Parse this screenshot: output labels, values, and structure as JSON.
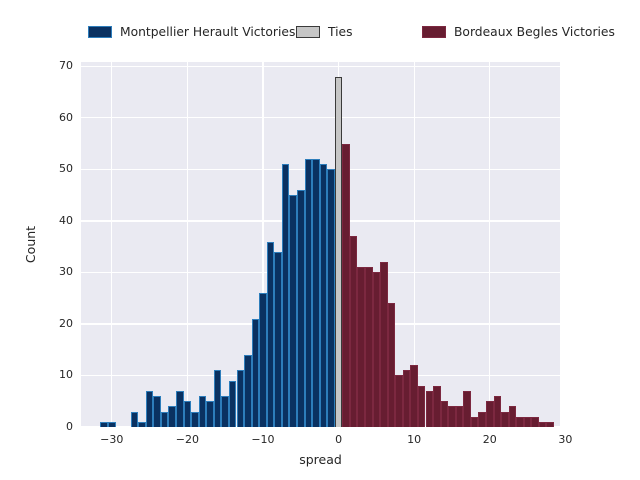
{
  "title": "",
  "legend": {
    "items": [
      {
        "label": "Montpellier Herault Victories",
        "color": "#0a3161",
        "edge": "#2d7dbb"
      },
      {
        "label": "Ties",
        "color": "#c6c6c6",
        "edge": "#3a3a3a"
      },
      {
        "label": "Bordeaux Begles Victories",
        "color": "#671d31",
        "edge": "#7c2840"
      }
    ]
  },
  "chart_data": {
    "type": "bar",
    "subtype": "histogram",
    "xlabel": "spread",
    "ylabel": "Count",
    "grid": true,
    "plot_background": "#eaeaf2",
    "grid_color": "#ffffff",
    "legend_position": "top",
    "xlim": [
      -34.07,
      29.29
    ],
    "ylim": [
      0,
      70.85
    ],
    "bin_width": 1,
    "x_ticks": {
      "values": [
        -30,
        -20,
        -10,
        0,
        10,
        20,
        30
      ],
      "labels": [
        "−30",
        "−20",
        "−10",
        "0",
        "10",
        "20",
        "30"
      ]
    },
    "y_ticks": {
      "values": [
        0,
        10,
        20,
        30,
        40,
        50,
        60,
        70
      ],
      "labels": [
        "0",
        "10",
        "20",
        "30",
        "40",
        "50",
        "60",
        "70"
      ]
    },
    "series": [
      {
        "name": "Montpellier Herault Victories",
        "fill": "#0a3161",
        "edge": "#2d7dbb",
        "edge_width": 1.2,
        "x": [
          -31,
          -30,
          -29,
          -28,
          -27,
          -26,
          -25,
          -24,
          -23,
          -22,
          -21,
          -20,
          -19,
          -18,
          -17,
          -16,
          -15,
          -14,
          -13,
          -12,
          -11,
          -10,
          -9,
          -8,
          -7,
          -6,
          -5,
          -4,
          -3,
          -2,
          -1
        ],
        "counts": [
          1,
          1,
          0,
          0,
          3,
          1,
          7,
          6,
          3,
          4,
          7,
          5,
          3,
          6,
          5,
          11,
          6,
          9,
          11,
          14,
          21,
          26,
          36,
          34,
          51,
          45,
          46,
          52,
          52,
          51,
          50
        ]
      },
      {
        "name": "Ties",
        "fill": "#c6c6c6",
        "edge": "#3a3a3a",
        "edge_width": 1.4,
        "x": [
          0
        ],
        "counts": [
          68
        ]
      },
      {
        "name": "Bordeaux Begles Victories",
        "fill": "#671d31",
        "edge": "#7c2840",
        "edge_width": 1.2,
        "x": [
          1,
          2,
          3,
          4,
          5,
          6,
          7,
          8,
          9,
          10,
          11,
          12,
          13,
          14,
          15,
          16,
          17,
          18,
          19,
          20,
          21,
          22,
          23,
          24,
          25,
          26,
          27,
          28
        ],
        "counts": [
          55,
          37,
          31,
          31,
          30,
          32,
          24,
          10,
          11,
          12,
          8,
          7,
          8,
          5,
          4,
          4,
          7,
          2,
          3,
          5,
          6,
          3,
          4,
          2,
          2,
          2,
          1,
          1
        ]
      }
    ]
  }
}
